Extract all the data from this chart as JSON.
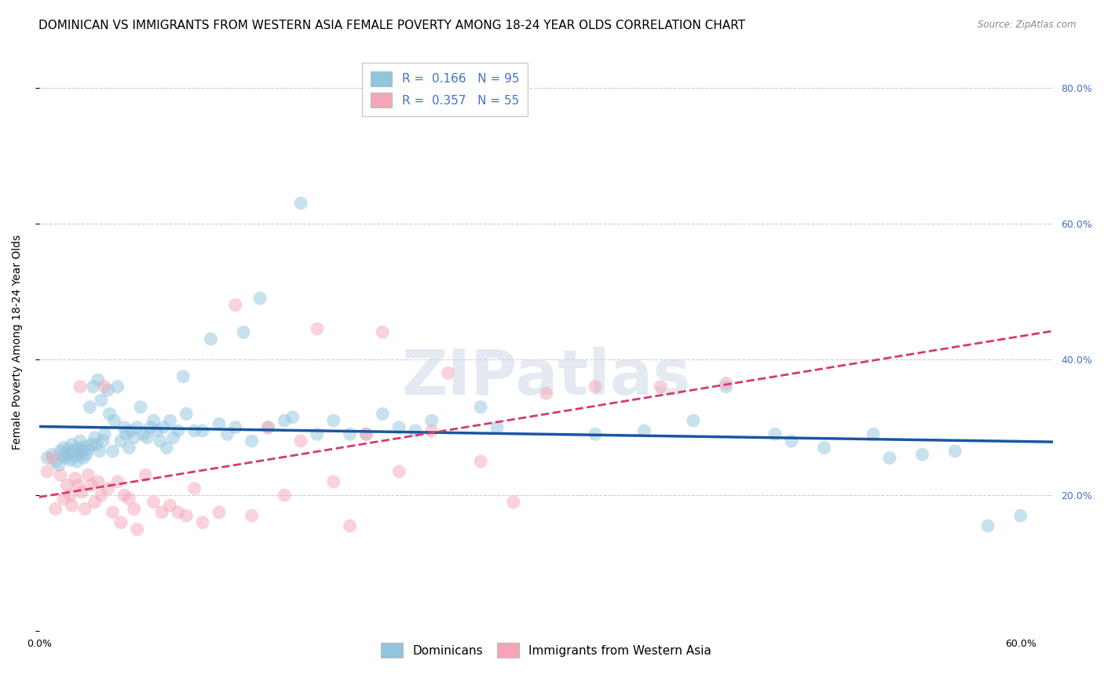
{
  "title": "DOMINICAN VS IMMIGRANTS FROM WESTERN ASIA FEMALE POVERTY AMONG 18-24 YEAR OLDS CORRELATION CHART",
  "source": "Source: ZipAtlas.com",
  "ylabel": "Female Poverty Among 18-24 Year Olds",
  "xlim": [
    0.0,
    0.62
  ],
  "ylim": [
    0.0,
    0.85
  ],
  "R_dominican": 0.166,
  "N_dominican": 95,
  "R_western_asia": 0.357,
  "N_western_asia": 55,
  "color_dominican": "#92c5de",
  "color_western_asia": "#f4a6b8",
  "trend_color_dominican": "#1a56a0",
  "trend_color_western_asia": "#d63a6e",
  "watermark": "ZIPatlas",
  "dominican_x": [
    0.005,
    0.008,
    0.01,
    0.012,
    0.013,
    0.015,
    0.015,
    0.016,
    0.017,
    0.018,
    0.019,
    0.02,
    0.021,
    0.022,
    0.023,
    0.024,
    0.025,
    0.025,
    0.026,
    0.027,
    0.028,
    0.029,
    0.03,
    0.031,
    0.032,
    0.033,
    0.034,
    0.035,
    0.036,
    0.037,
    0.038,
    0.039,
    0.04,
    0.042,
    0.043,
    0.045,
    0.046,
    0.048,
    0.05,
    0.052,
    0.053,
    0.055,
    0.056,
    0.058,
    0.06,
    0.062,
    0.064,
    0.066,
    0.068,
    0.07,
    0.072,
    0.074,
    0.076,
    0.078,
    0.08,
    0.082,
    0.085,
    0.088,
    0.09,
    0.095,
    0.1,
    0.105,
    0.11,
    0.115,
    0.12,
    0.125,
    0.13,
    0.135,
    0.14,
    0.15,
    0.155,
    0.16,
    0.17,
    0.18,
    0.19,
    0.2,
    0.21,
    0.22,
    0.23,
    0.24,
    0.27,
    0.28,
    0.34,
    0.37,
    0.4,
    0.42,
    0.45,
    0.46,
    0.48,
    0.51,
    0.52,
    0.54,
    0.56,
    0.58,
    0.6
  ],
  "dominican_y": [
    0.255,
    0.26,
    0.25,
    0.245,
    0.265,
    0.258,
    0.27,
    0.255,
    0.26,
    0.268,
    0.252,
    0.275,
    0.265,
    0.258,
    0.25,
    0.27,
    0.26,
    0.28,
    0.265,
    0.255,
    0.272,
    0.26,
    0.268,
    0.33,
    0.275,
    0.36,
    0.285,
    0.275,
    0.37,
    0.265,
    0.34,
    0.28,
    0.29,
    0.355,
    0.32,
    0.265,
    0.31,
    0.36,
    0.28,
    0.3,
    0.29,
    0.27,
    0.295,
    0.285,
    0.3,
    0.33,
    0.29,
    0.285,
    0.3,
    0.31,
    0.295,
    0.28,
    0.3,
    0.27,
    0.31,
    0.285,
    0.295,
    0.375,
    0.32,
    0.295,
    0.295,
    0.43,
    0.305,
    0.29,
    0.3,
    0.44,
    0.28,
    0.49,
    0.3,
    0.31,
    0.315,
    0.63,
    0.29,
    0.31,
    0.29,
    0.29,
    0.32,
    0.3,
    0.295,
    0.31,
    0.33,
    0.3,
    0.29,
    0.295,
    0.31,
    0.36,
    0.29,
    0.28,
    0.27,
    0.29,
    0.255,
    0.26,
    0.265,
    0.155,
    0.17
  ],
  "western_asia_x": [
    0.005,
    0.008,
    0.01,
    0.013,
    0.015,
    0.017,
    0.019,
    0.02,
    0.022,
    0.024,
    0.025,
    0.026,
    0.028,
    0.03,
    0.032,
    0.034,
    0.036,
    0.038,
    0.04,
    0.042,
    0.045,
    0.048,
    0.05,
    0.052,
    0.055,
    0.058,
    0.06,
    0.065,
    0.07,
    0.075,
    0.08,
    0.085,
    0.09,
    0.095,
    0.1,
    0.11,
    0.12,
    0.13,
    0.14,
    0.15,
    0.16,
    0.17,
    0.18,
    0.19,
    0.2,
    0.21,
    0.22,
    0.24,
    0.25,
    0.27,
    0.29,
    0.31,
    0.34,
    0.38,
    0.42
  ],
  "western_asia_y": [
    0.235,
    0.255,
    0.18,
    0.23,
    0.195,
    0.215,
    0.2,
    0.185,
    0.225,
    0.215,
    0.36,
    0.205,
    0.18,
    0.23,
    0.215,
    0.19,
    0.22,
    0.2,
    0.36,
    0.21,
    0.175,
    0.22,
    0.16,
    0.2,
    0.195,
    0.18,
    0.15,
    0.23,
    0.19,
    0.175,
    0.185,
    0.175,
    0.17,
    0.21,
    0.16,
    0.175,
    0.48,
    0.17,
    0.3,
    0.2,
    0.28,
    0.445,
    0.22,
    0.155,
    0.29,
    0.44,
    0.235,
    0.295,
    0.38,
    0.25,
    0.19,
    0.35,
    0.36,
    0.36,
    0.365
  ],
  "grid_color": "#cccccc",
  "background_color": "#ffffff",
  "title_fontsize": 11,
  "axis_label_fontsize": 10,
  "tick_fontsize": 9,
  "legend_fontsize": 11
}
